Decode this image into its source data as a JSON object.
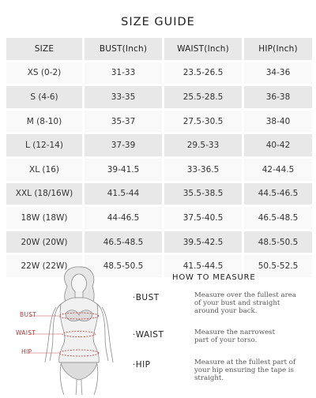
{
  "title": "SIZE GUIDE",
  "table": {
    "headers": [
      "SIZE",
      "BUST(Inch)",
      "WAIST(Inch)",
      "HIP(Inch)"
    ],
    "rows": [
      [
        "XS (0-2)",
        "31-33",
        "23.5-26.5",
        "34-36"
      ],
      [
        "S (4-6)",
        "33-35",
        "25.5-28.5",
        "36-38"
      ],
      [
        "M (8-10)",
        "35-37",
        "27.5-30.5",
        "38-40"
      ],
      [
        "L (12-14)",
        "37-39",
        "29.5-33",
        "40-42"
      ],
      [
        "XL (16)",
        "39-41.5",
        "33-36.5",
        "42-44.5"
      ],
      [
        "XXL (18/16W)",
        "41.5-44",
        "35.5-38.5",
        "44.5-46.5"
      ],
      [
        "18W (18W)",
        "44-46.5",
        "37.5-40.5",
        "46.5-48.5"
      ],
      [
        "20W (20W)",
        "46.5-48.5",
        "39.5-42.5",
        "48.5-50.5"
      ],
      [
        "22W (22W)",
        "48.5-50.5",
        "41.5-44.5",
        "50.5-52.5"
      ]
    ]
  },
  "figure": {
    "labels": {
      "bust": "BUST",
      "waist": "WAIST",
      "hip": "HIP"
    }
  },
  "how_to_measure": {
    "heading": "HOW TO MEASURE",
    "items": [
      {
        "dot": "·",
        "label": "BUST",
        "lines": [
          "Measure over the fullest area",
          "of your bust and straight",
          "around your back."
        ]
      },
      {
        "dot": "·",
        "label": "WAIST",
        "lines": [
          "Measure the narrowest",
          "part of your torso."
        ]
      },
      {
        "dot": "·",
        "label": "HIP",
        "lines": [
          "Measure at the fullest part of",
          "your hip ensuring the tape is",
          "straight."
        ]
      }
    ]
  },
  "colors": {
    "row_shade": "#e8e8e8",
    "row_light": "#f9f9f9",
    "measure_line": "#c0504d"
  }
}
